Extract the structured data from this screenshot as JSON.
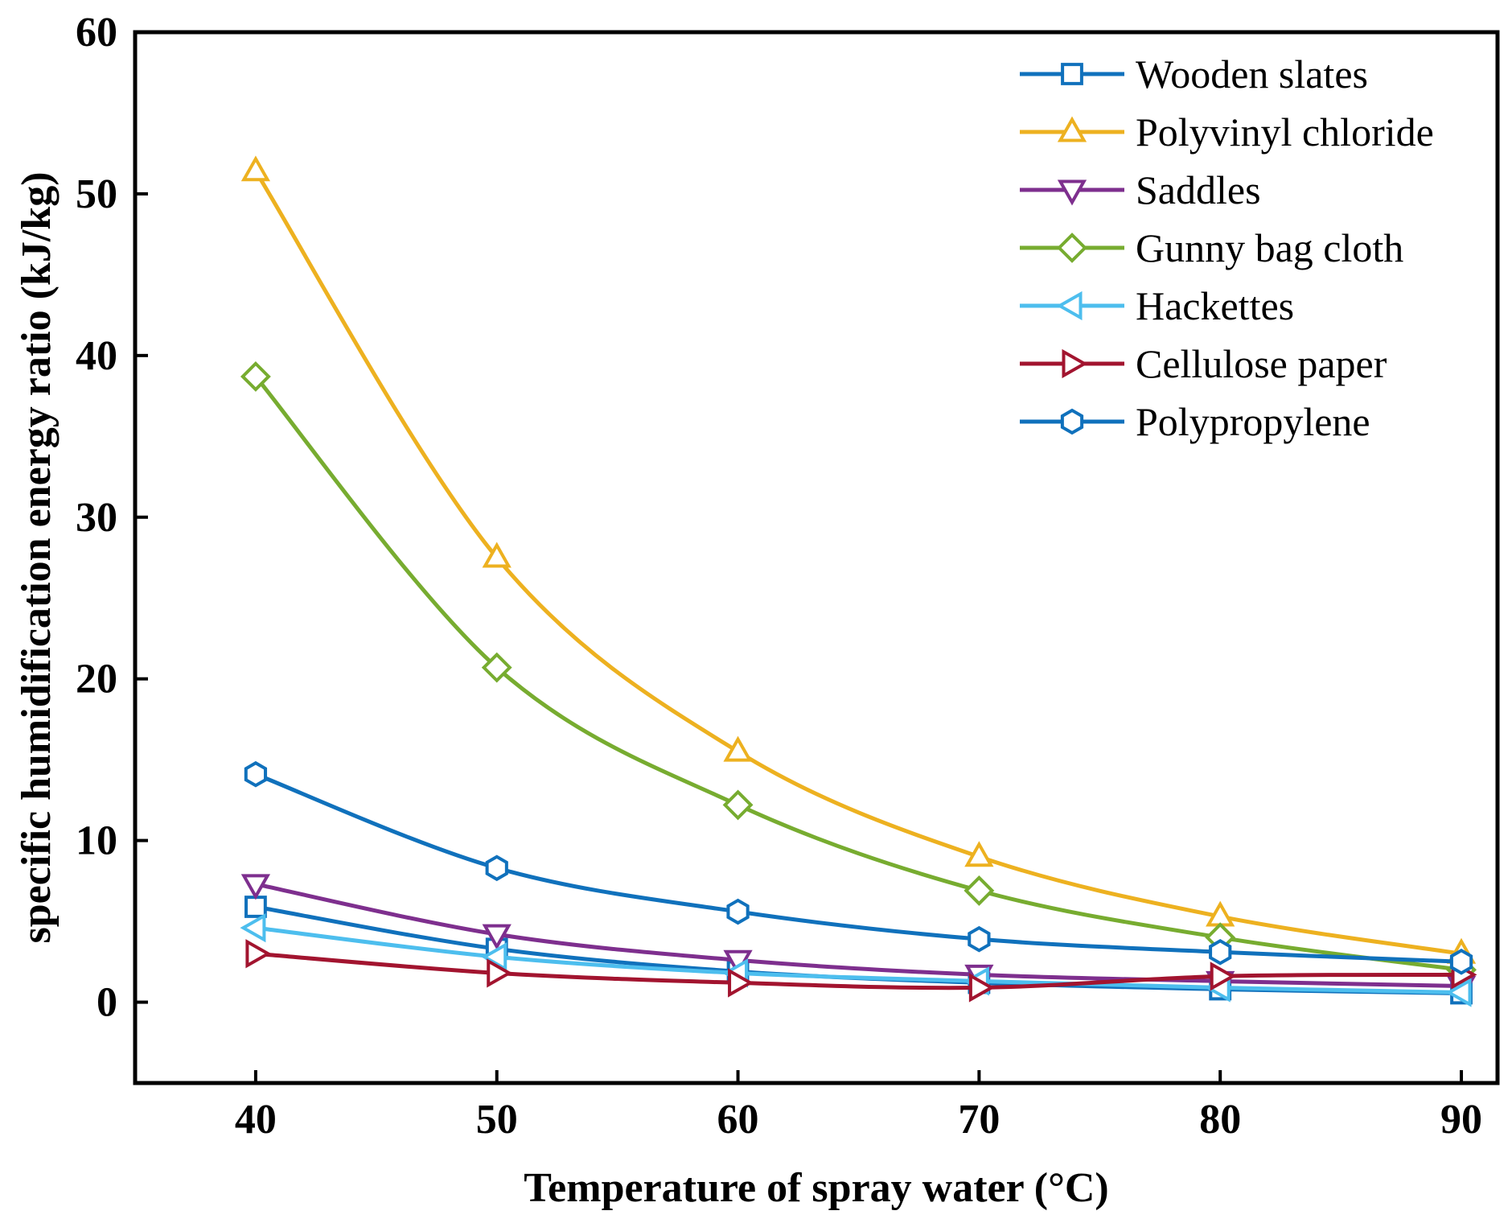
{
  "chart_data": {
    "type": "line",
    "title": "",
    "xlabel": "Temperature of spray water (°C)",
    "ylabel": "specific humidification energy ratio (kJ/kg)",
    "xlim": [
      35,
      91.5
    ],
    "ylim": [
      -5,
      60
    ],
    "xticks": [
      40,
      50,
      60,
      70,
      80,
      90
    ],
    "yticks": [
      0,
      10,
      20,
      30,
      40,
      50,
      60
    ],
    "x": [
      40,
      50,
      60,
      70,
      80,
      90
    ],
    "legend_position": "top-right",
    "grid": false,
    "series": [
      {
        "name": "Wooden slates",
        "color": "#1071BC",
        "marker": "square",
        "values": [
          5.9,
          3.3,
          1.9,
          1.2,
          0.8,
          0.55
        ]
      },
      {
        "name": "Polyvinyl chloride",
        "color": "#EDB120",
        "marker": "triangle-up",
        "values": [
          51.4,
          27.5,
          15.5,
          9.0,
          5.3,
          3.0
        ]
      },
      {
        "name": "Saddles",
        "color": "#7E2F8E",
        "marker": "triangle-down",
        "values": [
          7.3,
          4.2,
          2.6,
          1.7,
          1.3,
          1.0
        ]
      },
      {
        "name": "Gunny bag cloth",
        "color": "#77AC30",
        "marker": "diamond",
        "values": [
          38.7,
          20.7,
          12.2,
          6.9,
          4.0,
          2.0
        ]
      },
      {
        "name": "Hackettes",
        "color": "#4DBEEE",
        "marker": "triangle-left",
        "values": [
          4.6,
          2.8,
          1.8,
          1.3,
          0.9,
          0.6
        ]
      },
      {
        "name": "Cellulose paper",
        "color": "#A2142F",
        "marker": "triangle-right",
        "values": [
          3.0,
          1.8,
          1.2,
          0.9,
          1.6,
          1.7
        ]
      },
      {
        "name": "Polypropylene",
        "color": "#1071BC",
        "marker": "hexagon",
        "values": [
          14.1,
          8.3,
          5.6,
          3.9,
          3.1,
          2.5
        ]
      }
    ]
  }
}
